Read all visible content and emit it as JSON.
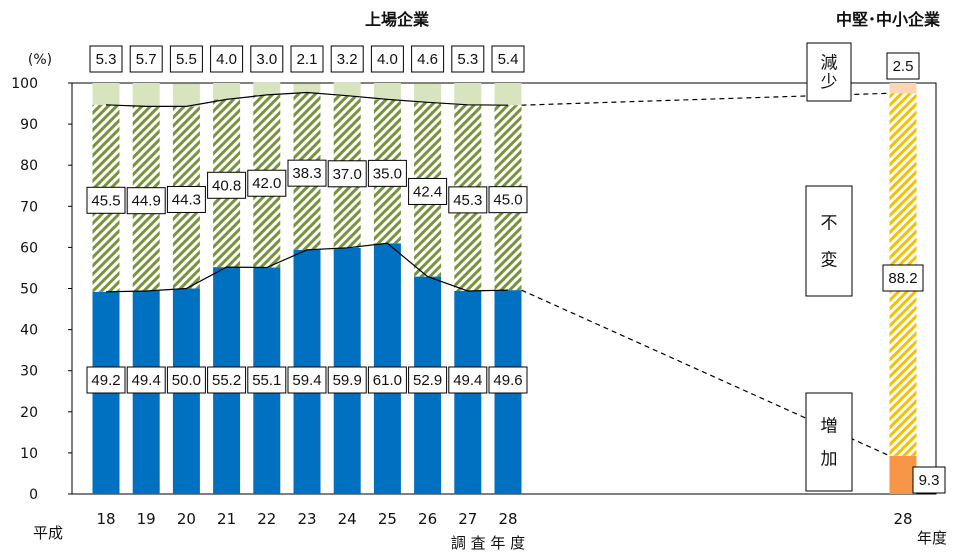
{
  "chart_data": {
    "type": "bar",
    "stacked": true,
    "ylabel_unit": "(%)",
    "ylim": [
      0,
      100
    ],
    "yticks": [
      "0",
      "10",
      "20",
      "30",
      "40",
      "50",
      "60",
      "70",
      "80",
      "90",
      "100"
    ],
    "xlabel": "調 査 年 度",
    "era_label": "平成",
    "year_label": "年度",
    "group_labels": {
      "listed": "上場企業",
      "sme": "中堅･中小企業"
    },
    "categories": [
      "18",
      "19",
      "20",
      "21",
      "22",
      "23",
      "24",
      "25",
      "26",
      "27",
      "28"
    ],
    "series": [
      {
        "name": "増加",
        "values": [
          49.2,
          49.4,
          50.0,
          55.2,
          55.1,
          59.4,
          59.9,
          61.0,
          52.9,
          49.4,
          49.6
        ],
        "labels": [
          "49.2",
          "49.4",
          "50.0",
          "55.2",
          "55.1",
          "59.4",
          "59.9",
          "61.0",
          "52.9",
          "49.4",
          "49.6"
        ]
      },
      {
        "name": "不変",
        "values": [
          45.5,
          44.9,
          44.3,
          40.8,
          42.0,
          38.3,
          37.0,
          35.0,
          42.4,
          45.3,
          45.0
        ],
        "labels": [
          "45.5",
          "44.9",
          "44.3",
          "40.8",
          "42.0",
          "38.3",
          "37.0",
          "35.0",
          "42.4",
          "45.3",
          "45.0"
        ]
      },
      {
        "name": "減少",
        "values": [
          5.3,
          5.7,
          5.5,
          4.0,
          3.0,
          2.1,
          3.2,
          4.0,
          4.6,
          5.3,
          5.4
        ],
        "labels": [
          "5.3",
          "5.7",
          "5.5",
          "4.0",
          "3.0",
          "2.1",
          "3.2",
          "4.0",
          "4.6",
          "5.3",
          "5.4"
        ]
      }
    ],
    "sme": {
      "category": "28",
      "increase": 9.3,
      "unchanged": 88.2,
      "decrease": 2.5,
      "labels": {
        "increase": "9.3",
        "unchanged": "88.2",
        "decrease": "2.5"
      }
    },
    "legend_side": {
      "decrease": "減\n少",
      "unchanged": "不\n変",
      "increase": "増\n加"
    },
    "colors": {
      "increase": "#0070c0",
      "unchanged_hatch": "#77933c",
      "decrease": "#d7e4bd",
      "sme_increase": "#f79646",
      "sme_unchanged_hatch": "#f5c000",
      "sme_decrease": "#fcd5b4"
    }
  }
}
